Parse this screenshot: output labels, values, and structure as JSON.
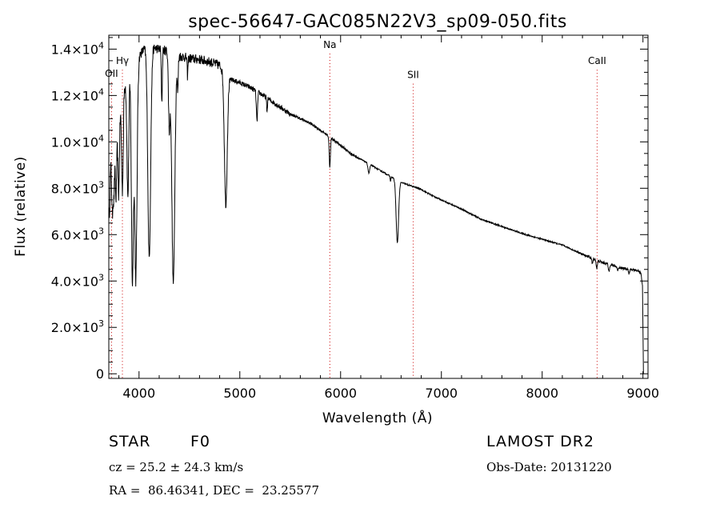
{
  "chart_data": {
    "type": "line",
    "title": "spec-56647-GAC085N22V3_sp09-050.fits",
    "xlabel": "Wavelength (Å)",
    "ylabel": "Flux (relative)",
    "xlim": [
      3700,
      9050
    ],
    "ylim": [
      -200,
      14600
    ],
    "x_ticks": [
      4000,
      5000,
      6000,
      7000,
      8000,
      9000
    ],
    "x_tick_labels": [
      "4000",
      "5000",
      "6000",
      "7000",
      "8000",
      "9000"
    ],
    "y_ticks": [
      {
        "value": 0,
        "mant": "0",
        "exp": ""
      },
      {
        "value": 2000,
        "mant": "2.0×10",
        "exp": "3"
      },
      {
        "value": 4000,
        "mant": "4.0×10",
        "exp": "3"
      },
      {
        "value": 6000,
        "mant": "6.0×10",
        "exp": "3"
      },
      {
        "value": 8000,
        "mant": "8.0×10",
        "exp": "3"
      },
      {
        "value": 10000,
        "mant": "1.0×10",
        "exp": "4"
      },
      {
        "value": 12000,
        "mant": "1.2×10",
        "exp": "4"
      },
      {
        "value": 14000,
        "mant": "1.4×10",
        "exp": "4"
      }
    ],
    "line_markers": [
      {
        "name": "OII",
        "wavelength": 3727,
        "label_flux": 12800
      },
      {
        "name": "Hγ",
        "wavelength": 3835,
        "label_flux": 13350
      },
      {
        "name": "Na",
        "wavelength": 5893,
        "label_flux": 14050
      },
      {
        "name": "SII",
        "wavelength": 6720,
        "label_flux": 12750
      },
      {
        "name": "CaII",
        "wavelength": 8545,
        "label_flux": 13350
      }
    ],
    "marker_color": "#cc0000",
    "line_color": "#000000",
    "continuum": [
      [
        3700,
        8500
      ],
      [
        3750,
        9800
      ],
      [
        3800,
        11000
      ],
      [
        3850,
        12300
      ],
      [
        3900,
        13000
      ],
      [
        3950,
        13400
      ],
      [
        4000,
        13700
      ],
      [
        4050,
        14000
      ],
      [
        4100,
        14100
      ],
      [
        4200,
        14000
      ],
      [
        4300,
        13900
      ],
      [
        4400,
        13700
      ],
      [
        4500,
        13600
      ],
      [
        4600,
        13550
      ],
      [
        4700,
        13450
      ],
      [
        4800,
        13300
      ],
      [
        4900,
        12700
      ],
      [
        5000,
        12550
      ],
      [
        5100,
        12350
      ],
      [
        5200,
        12100
      ],
      [
        5300,
        11800
      ],
      [
        5400,
        11500
      ],
      [
        5500,
        11200
      ],
      [
        5600,
        11000
      ],
      [
        5700,
        10800
      ],
      [
        5800,
        10500
      ],
      [
        5900,
        10200
      ],
      [
        6000,
        9850
      ],
      [
        6100,
        9500
      ],
      [
        6200,
        9250
      ],
      [
        6300,
        9000
      ],
      [
        6400,
        8750
      ],
      [
        6500,
        8500
      ],
      [
        6600,
        8250
      ],
      [
        6700,
        8100
      ],
      [
        6800,
        7950
      ],
      [
        6900,
        7700
      ],
      [
        7000,
        7500
      ],
      [
        7200,
        7100
      ],
      [
        7400,
        6650
      ],
      [
        7600,
        6350
      ],
      [
        7800,
        6050
      ],
      [
        8000,
        5800
      ],
      [
        8200,
        5550
      ],
      [
        8400,
        5150
      ],
      [
        8600,
        4800
      ],
      [
        8800,
        4550
      ],
      [
        8950,
        4450
      ],
      [
        8980,
        4350
      ],
      [
        8995,
        3800
      ],
      [
        9000,
        2000
      ],
      [
        9005,
        0
      ]
    ],
    "absorption_lines": [
      {
        "wavelength": 3705,
        "depth": 1800,
        "width": 6
      },
      {
        "wavelength": 3735,
        "depth": 2500,
        "width": 6
      },
      {
        "wavelength": 3750,
        "depth": 2200,
        "width": 6
      },
      {
        "wavelength": 3771,
        "depth": 2800,
        "width": 7
      },
      {
        "wavelength": 3798,
        "depth": 3200,
        "width": 7
      },
      {
        "wavelength": 3835,
        "depth": 4000,
        "width": 8
      },
      {
        "wavelength": 3889,
        "depth": 5200,
        "width": 9
      },
      {
        "wavelength": 3934,
        "depth": 9200,
        "width": 10
      },
      {
        "wavelength": 3968,
        "depth": 9400,
        "width": 12
      },
      {
        "wavelength": 4101,
        "depth": 9100,
        "width": 14
      },
      {
        "wavelength": 4226,
        "depth": 2200,
        "width": 5
      },
      {
        "wavelength": 4300,
        "depth": 3200,
        "width": 8
      },
      {
        "wavelength": 4340,
        "depth": 9900,
        "width": 15
      },
      {
        "wavelength": 4384,
        "depth": 1500,
        "width": 5
      },
      {
        "wavelength": 4481,
        "depth": 800,
        "width": 4
      },
      {
        "wavelength": 4861,
        "depth": 5600,
        "width": 14
      },
      {
        "wavelength": 5170,
        "depth": 1300,
        "width": 6
      },
      {
        "wavelength": 5270,
        "depth": 600,
        "width": 4
      },
      {
        "wavelength": 5893,
        "depth": 1300,
        "width": 6
      },
      {
        "wavelength": 6280,
        "depth": 400,
        "width": 8
      },
      {
        "wavelength": 6495,
        "depth": 200,
        "width": 4
      },
      {
        "wavelength": 6563,
        "depth": 2700,
        "width": 12
      },
      {
        "wavelength": 8498,
        "depth": 250,
        "width": 5
      },
      {
        "wavelength": 8542,
        "depth": 350,
        "width": 6
      },
      {
        "wavelength": 8662,
        "depth": 300,
        "width": 6
      },
      {
        "wavelength": 8750,
        "depth": 150,
        "width": 6
      },
      {
        "wavelength": 8863,
        "depth": 200,
        "width": 6
      }
    ]
  },
  "info": {
    "class_label": "STAR",
    "subclass": "F0",
    "survey": "LAMOST DR2",
    "redshift_line": "cz = 25.2 ± 24.3 km/s",
    "obs_date_line": "Obs-Date: 20131220",
    "coords_line": "RA =  86.46341, DEC =  23.25577"
  }
}
